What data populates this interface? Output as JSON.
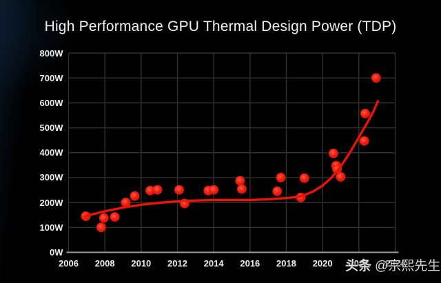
{
  "chart": {
    "title": "High Performance GPU Thermal Design Power (TDP)"
  },
  "watermark": {
    "brand": "头条",
    "handle": "@宗熙先生"
  },
  "colors": {
    "background": "#000000",
    "edge_tint": "#08192b",
    "title_text": "#f2f2f2",
    "axis_label_text": "#ededed",
    "grid_line": "#313131",
    "axis_line": "#9c9c9c",
    "point_fill": "#ee1d0e",
    "point_fill_light": "#ff5a48",
    "point_fill_dark": "#cf1305",
    "trend_line": "#e81505",
    "watermark_text": "#e3e3e3"
  },
  "chart_data": {
    "type": "scatter",
    "title": "High Performance GPU Thermal Design Power (TDP)",
    "xlabel": "",
    "ylabel": "",
    "xlim": [
      2006,
      2024
    ],
    "ylim": [
      0,
      800
    ],
    "x_ticks": [
      2006,
      2008,
      2010,
      2012,
      2014,
      2016,
      2018,
      2020,
      2022,
      2024
    ],
    "y_ticks": [
      0,
      100,
      200,
      300,
      400,
      500,
      600,
      700,
      800
    ],
    "y_unit": "W",
    "grid": true,
    "legend_position": "none",
    "series": [
      {
        "name": "GPU TDP (W) by release year",
        "kind": "scatter",
        "points": [
          [
            2006.95,
            145
          ],
          [
            2007.8,
            100
          ],
          [
            2007.95,
            138
          ],
          [
            2008.55,
            142
          ],
          [
            2009.15,
            200
          ],
          [
            2009.65,
            226
          ],
          [
            2010.5,
            248
          ],
          [
            2010.9,
            251
          ],
          [
            2012.1,
            251
          ],
          [
            2012.4,
            196
          ],
          [
            2013.7,
            248
          ],
          [
            2014.0,
            251
          ],
          [
            2015.45,
            287
          ],
          [
            2015.55,
            254
          ],
          [
            2017.5,
            245
          ],
          [
            2017.7,
            300
          ],
          [
            2018.8,
            220
          ],
          [
            2019.0,
            298
          ],
          [
            2020.6,
            397
          ],
          [
            2020.75,
            348
          ],
          [
            2020.8,
            334
          ],
          [
            2021.0,
            303
          ],
          [
            2022.3,
            447
          ],
          [
            2022.35,
            557
          ],
          [
            2022.95,
            700
          ]
        ]
      },
      {
        "name": "trend line",
        "kind": "line",
        "points": [
          [
            2006.9,
            145
          ],
          [
            2008.0,
            165
          ],
          [
            2009.0,
            180
          ],
          [
            2010.0,
            191
          ],
          [
            2011.0,
            199
          ],
          [
            2012.0,
            205
          ],
          [
            2013.0,
            208
          ],
          [
            2014.0,
            210
          ],
          [
            2015.0,
            210
          ],
          [
            2016.0,
            210
          ],
          [
            2017.0,
            213
          ],
          [
            2018.0,
            218
          ],
          [
            2018.6,
            222
          ],
          [
            2019.0,
            230
          ],
          [
            2019.5,
            245
          ],
          [
            2020.0,
            268
          ],
          [
            2020.5,
            300
          ],
          [
            2021.0,
            345
          ],
          [
            2021.5,
            400
          ],
          [
            2022.0,
            462
          ],
          [
            2022.5,
            525
          ],
          [
            2022.8,
            565
          ],
          [
            2023.05,
            607
          ]
        ]
      }
    ]
  }
}
